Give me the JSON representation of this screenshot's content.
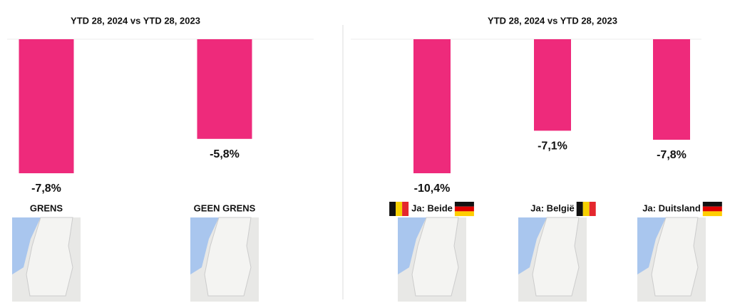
{
  "chart_data": [
    {
      "type": "bar",
      "title": "YTD 28, 2024 vs YTD 28, 2023",
      "categories": [
        "GRENS",
        "GEEN GRENS"
      ],
      "values": [
        -7.8,
        -5.8
      ],
      "value_labels": [
        "-7,8%",
        "-5,8%"
      ],
      "color": "#ee2a7b"
    },
    {
      "type": "bar",
      "title": "YTD 28, 2024 vs YTD 28, 2023",
      "categories": [
        "Ja: Beide",
        "Ja: België",
        "Ja: Duitsland"
      ],
      "values": [
        -10.4,
        -7.1,
        -7.8
      ],
      "value_labels": [
        "-10,4%",
        "-7,1%",
        "-7,8%"
      ],
      "color": "#ee2a7b"
    }
  ]
}
